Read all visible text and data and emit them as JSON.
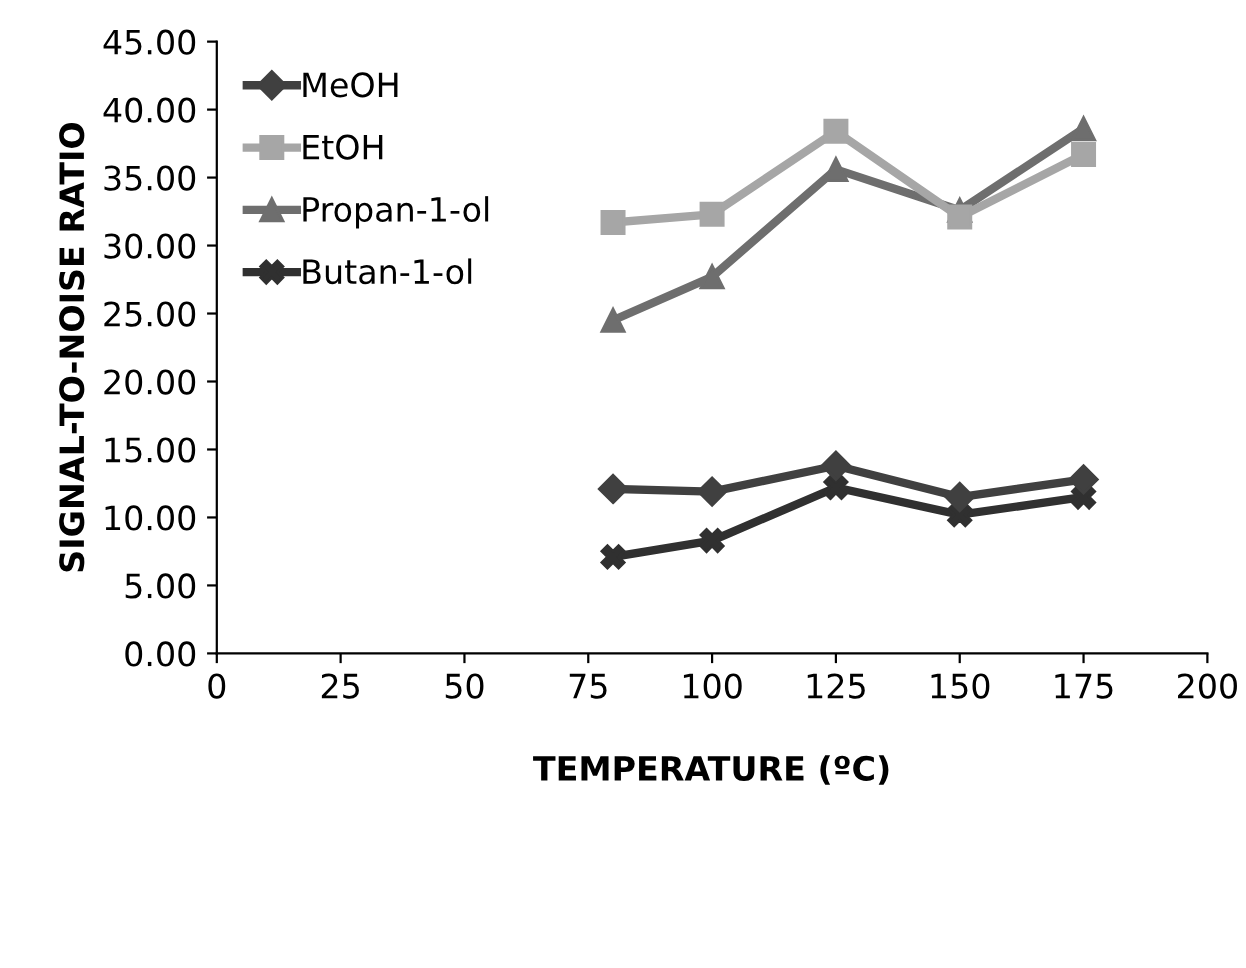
{
  "chart_data": {
    "type": "line",
    "xlabel": "TEMPERATURE (ºC)",
    "ylabel": "SIGNAL-TO-NOISE RATIO",
    "x": [
      80,
      100,
      125,
      150,
      175
    ],
    "series": [
      {
        "name": "MeOH",
        "color": "#404040",
        "marker": "diamond",
        "values": [
          12.1,
          11.9,
          13.8,
          11.5,
          12.8
        ]
      },
      {
        "name": "EtOH",
        "color": "#a6a6a6",
        "marker": "square",
        "values": [
          31.7,
          32.3,
          38.4,
          32.1,
          36.7
        ]
      },
      {
        "name": "Propan-1-ol",
        "color": "#6e6e6e",
        "marker": "triangle",
        "values": [
          24.5,
          27.7,
          35.6,
          32.6,
          38.6
        ]
      },
      {
        "name": "Butan-1-ol",
        "color": "#303030",
        "marker": "cross",
        "values": [
          7.1,
          8.3,
          12.2,
          10.2,
          11.5
        ]
      }
    ],
    "xlim": [
      0,
      200
    ],
    "xticks": [
      0,
      25,
      50,
      75,
      100,
      125,
      150,
      175,
      200
    ],
    "ylim": [
      0,
      45
    ],
    "yticks": [
      {
        "value": 0,
        "label": "0.00"
      },
      {
        "value": 5,
        "label": "5.00"
      },
      {
        "value": 10,
        "label": "10.00"
      },
      {
        "value": 15,
        "label": "15.00"
      },
      {
        "value": 20,
        "label": "20.00"
      },
      {
        "value": 25,
        "label": "25.00"
      },
      {
        "value": 30,
        "label": "30.00"
      },
      {
        "value": 35,
        "label": "35.00"
      },
      {
        "value": 40,
        "label": "40.00"
      },
      {
        "value": 45,
        "label": "45.00"
      }
    ],
    "grid": false,
    "legend": "top left",
    "line_style": "solid"
  }
}
